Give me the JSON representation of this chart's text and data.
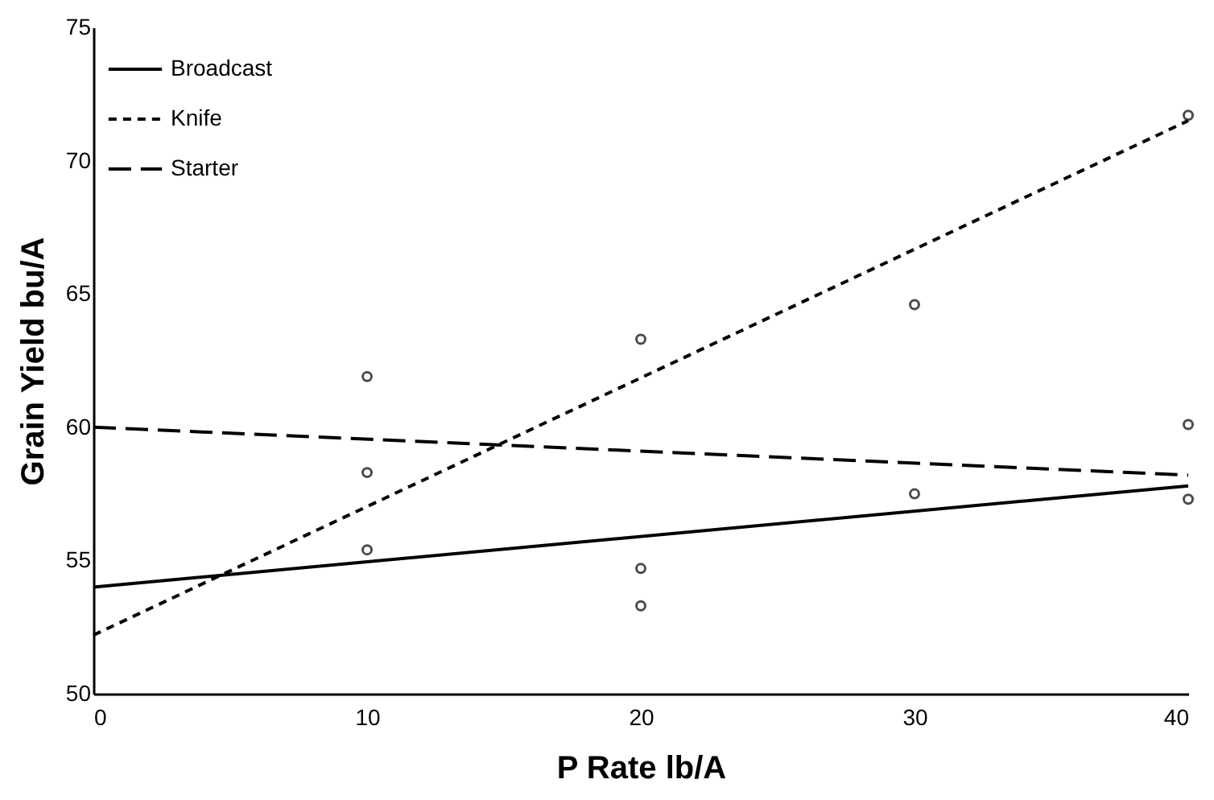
{
  "chart_data": {
    "type": "line",
    "xlabel": "P Rate lb/A",
    "ylabel": "Grain Yield bu/A",
    "xlim": [
      0,
      40
    ],
    "ylim": [
      50,
      75
    ],
    "xticks": [
      0,
      10,
      20,
      30,
      40
    ],
    "yticks": [
      50,
      55,
      60,
      65,
      70,
      75
    ],
    "grid": false,
    "legend": "top left",
    "series": [
      {
        "name": "Broadcast",
        "line_style": "solid",
        "color": "#000000",
        "x": [
          0,
          40
        ],
        "values": [
          54.0,
          57.8
        ]
      },
      {
        "name": "Knife",
        "line_style": "dotted",
        "color": "#000000",
        "x": [
          0,
          40
        ],
        "values": [
          52.2,
          71.5
        ]
      },
      {
        "name": "Starter",
        "line_style": "dashed",
        "color": "#000000",
        "x": [
          0,
          40
        ],
        "values": [
          60.0,
          58.2
        ]
      },
      {
        "type": "scatter",
        "marker": "circle",
        "color": "#000000",
        "x": [
          10,
          10,
          10,
          20,
          20,
          20,
          30,
          30,
          40,
          40,
          40
        ],
        "values": [
          61.9,
          58.3,
          55.4,
          63.3,
          54.7,
          53.3,
          64.6,
          57.5,
          71.7,
          60.1,
          57.3
        ]
      }
    ]
  }
}
